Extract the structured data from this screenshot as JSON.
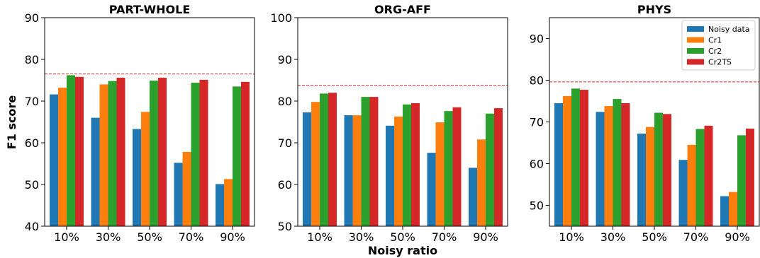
{
  "figure": {
    "ylabel": "F1 score",
    "xlabel": "Noisy ratio"
  },
  "chart_data": [
    {
      "type": "bar",
      "title": "PART-WHOLE",
      "categories": [
        "10%",
        "30%",
        "50%",
        "70%",
        "90%"
      ],
      "ylim": [
        40,
        90
      ],
      "yticks": [
        40,
        50,
        60,
        70,
        80,
        90
      ],
      "reference_line": 76.5,
      "series": [
        {
          "name": "Noisy data",
          "values": [
            71.6,
            66.0,
            63.3,
            55.2,
            50.1
          ]
        },
        {
          "name": "Cr1",
          "values": [
            73.2,
            74.0,
            67.4,
            57.8,
            51.3
          ]
        },
        {
          "name": "Cr2",
          "values": [
            76.2,
            74.8,
            74.9,
            74.4,
            73.5
          ]
        },
        {
          "name": "Cr2TS",
          "values": [
            75.8,
            75.6,
            75.6,
            75.1,
            74.6
          ]
        }
      ]
    },
    {
      "type": "bar",
      "title": "ORG-AFF",
      "categories": [
        "10%",
        "30%",
        "50%",
        "70%",
        "90%"
      ],
      "ylim": [
        50,
        100
      ],
      "yticks": [
        50,
        60,
        70,
        80,
        90,
        100
      ],
      "reference_line": 83.8,
      "series": [
        {
          "name": "Noisy data",
          "values": [
            77.3,
            76.6,
            74.1,
            67.6,
            64.0
          ]
        },
        {
          "name": "Cr1",
          "values": [
            79.8,
            76.6,
            76.3,
            74.9,
            70.8
          ]
        },
        {
          "name": "Cr2",
          "values": [
            81.8,
            81.0,
            79.2,
            77.6,
            77.0
          ]
        },
        {
          "name": "Cr2TS",
          "values": [
            82.0,
            81.0,
            79.5,
            78.5,
            78.3
          ]
        }
      ]
    },
    {
      "type": "bar",
      "title": "PHYS",
      "categories": [
        "10%",
        "30%",
        "50%",
        "70%",
        "90%"
      ],
      "ylim": [
        45,
        95
      ],
      "yticks": [
        50,
        60,
        70,
        80,
        90
      ],
      "reference_line": 79.6,
      "legend": "top-right",
      "series": [
        {
          "name": "Noisy data",
          "values": [
            74.5,
            72.4,
            67.2,
            60.9,
            52.2
          ]
        },
        {
          "name": "Cr1",
          "values": [
            76.2,
            73.8,
            68.8,
            64.5,
            53.2
          ]
        },
        {
          "name": "Cr2",
          "values": [
            78.0,
            75.5,
            72.2,
            68.3,
            66.8
          ]
        },
        {
          "name": "Cr2TS",
          "values": [
            77.7,
            74.5,
            71.9,
            69.1,
            68.4
          ]
        }
      ]
    }
  ],
  "colors": [
    "#1f77b4",
    "#ff7f0e",
    "#2ca02c",
    "#d62728"
  ],
  "reference_line_color": "#d62728"
}
